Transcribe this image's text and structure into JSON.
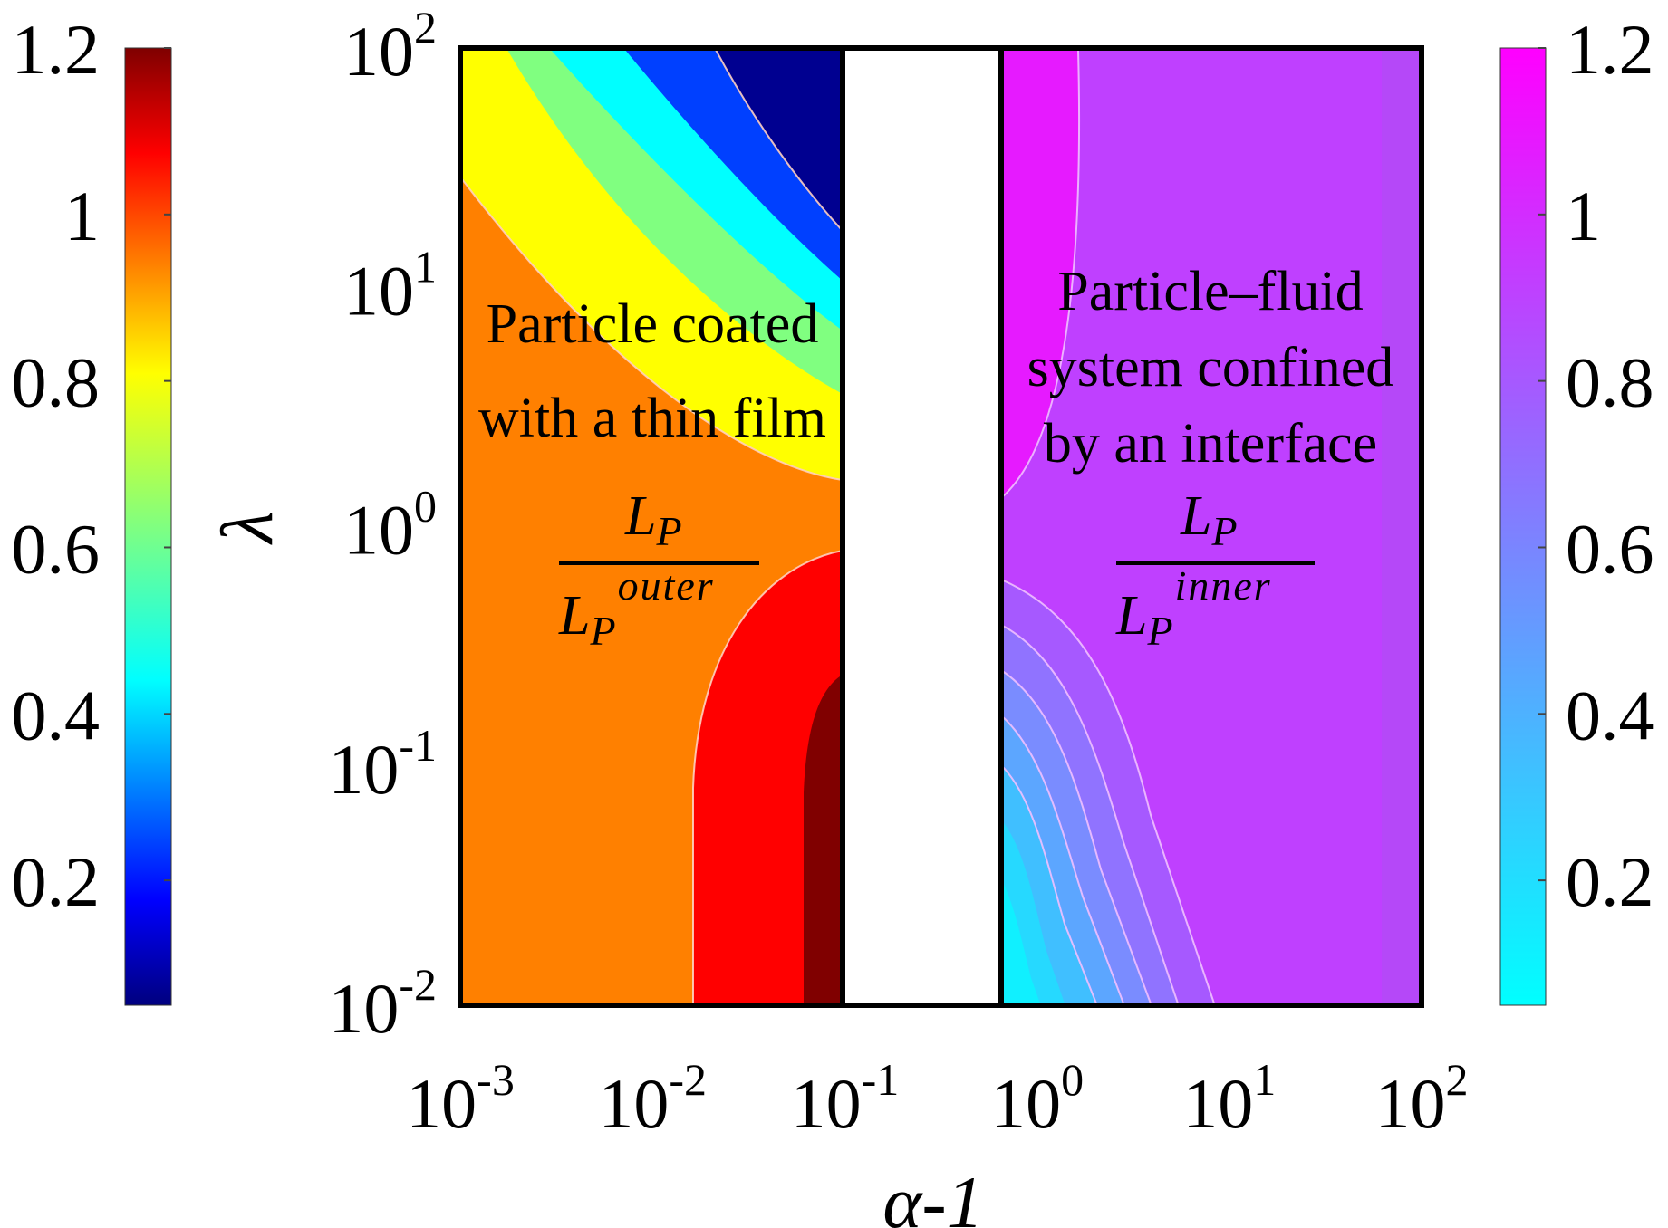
{
  "chart_data": [
    {
      "type": "heatmap",
      "title": "",
      "xlabel": "α-1",
      "ylabel": "λ",
      "x_scale": "log",
      "y_scale": "log",
      "xlim": [
        0.001,
        100
      ],
      "ylim": [
        0.01,
        100
      ],
      "x_ticks": [
        {
          "base": "10",
          "exp": "-3"
        },
        {
          "base": "10",
          "exp": "-2"
        },
        {
          "base": "10",
          "exp": "-1"
        },
        {
          "base": "10",
          "exp": "0"
        },
        {
          "base": "10",
          "exp": "1"
        },
        {
          "base": "10",
          "exp": "2"
        }
      ],
      "y_ticks": [
        {
          "base": "10",
          "exp": "-2"
        },
        {
          "base": "10",
          "exp": "-1"
        },
        {
          "base": "10",
          "exp": "0"
        },
        {
          "base": "10",
          "exp": "1"
        },
        {
          "base": "10",
          "exp": "2"
        }
      ],
      "grid": false,
      "panels": [
        {
          "region_x": [
            0.001,
            0.1
          ],
          "annotation": [
            "Particle coated",
            "with a thin film"
          ],
          "fraction": {
            "numerator": "L",
            "numerator_sub": "P",
            "denominator": "L",
            "denominator_sub": "P",
            "denominator_sup": "outer"
          },
          "colormap": "jet",
          "color_range": [
            0.05,
            1.2
          ],
          "contour_levels": [
            0.2,
            0.4,
            0.6,
            0.8,
            1.0,
            1.1,
            1.2
          ]
        },
        {
          "region_x": [
            0.6,
            100
          ],
          "annotation": [
            "Particle–fluid",
            "system confined",
            "by an interface"
          ],
          "fraction": {
            "numerator": "L",
            "numerator_sub": "P",
            "denominator": "L",
            "denominator_sub": "P",
            "denominator_sup": "inner"
          },
          "colormap": "cool",
          "color_range": [
            0.05,
            1.2
          ],
          "contour_levels": [
            0.2,
            0.3,
            0.4,
            0.5,
            0.6,
            0.7,
            0.8,
            0.9,
            1.0
          ]
        }
      ],
      "colorbars": [
        {
          "side": "left",
          "colormap": "jet",
          "range": [
            0.05,
            1.2
          ],
          "ticks": [
            "1.2",
            "1",
            "0.8",
            "0.6",
            "0.4",
            "0.2"
          ],
          "tick_values": [
            1.2,
            1.0,
            0.8,
            0.6,
            0.4,
            0.2
          ]
        },
        {
          "side": "right",
          "colormap": "cool",
          "range": [
            0.05,
            1.2
          ],
          "ticks": [
            "1.2",
            "1",
            "0.8",
            "0.6",
            "0.4",
            "0.2"
          ],
          "tick_values": [
            1.2,
            1.0,
            0.8,
            0.6,
            0.4,
            0.2
          ]
        }
      ]
    }
  ]
}
